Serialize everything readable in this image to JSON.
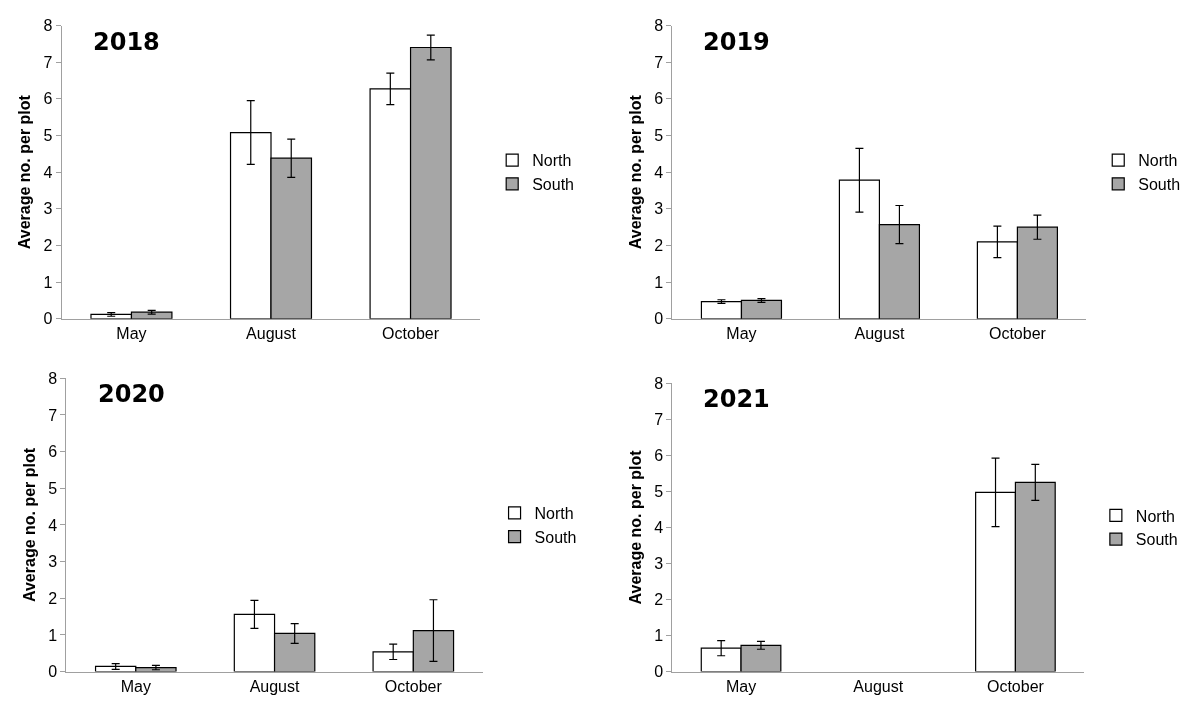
{
  "chart_data": [
    {
      "type": "bar",
      "title": "2018",
      "ylabel": "Average no. per plot",
      "categories": [
        "May",
        "August",
        "October"
      ],
      "ylim": [
        0,
        8
      ],
      "yticks": [
        0,
        1,
        2,
        3,
        4,
        5,
        6,
        7,
        8
      ],
      "legend": "right",
      "series": [
        {
          "name": "North",
          "color": "#ffffff",
          "values": [
            0.12,
            5.08,
            6.27
          ],
          "errors": [
            0.05,
            0.87,
            0.43
          ]
        },
        {
          "name": "South",
          "color": "#a6a6a6",
          "values": [
            0.18,
            4.38,
            7.4
          ],
          "errors": [
            0.05,
            0.52,
            0.34
          ]
        }
      ]
    },
    {
      "type": "bar",
      "title": "2019",
      "ylabel": "Average no. per plot",
      "categories": [
        "May",
        "August",
        "October"
      ],
      "ylim": [
        0,
        8
      ],
      "yticks": [
        0,
        1,
        2,
        3,
        4,
        5,
        6,
        7,
        8
      ],
      "legend": "right",
      "series": [
        {
          "name": "North",
          "color": "#ffffff",
          "values": [
            0.47,
            3.78,
            2.1
          ],
          "errors": [
            0.05,
            0.87,
            0.43
          ]
        },
        {
          "name": "South",
          "color": "#a6a6a6",
          "values": [
            0.5,
            2.57,
            2.5
          ],
          "errors": [
            0.05,
            0.52,
            0.33
          ]
        }
      ]
    },
    {
      "type": "bar",
      "title": "2020",
      "ylabel": "Average no. per plot",
      "categories": [
        "May",
        "August",
        "October"
      ],
      "ylim": [
        0,
        8
      ],
      "yticks": [
        0,
        1,
        2,
        3,
        4,
        5,
        6,
        7,
        8
      ],
      "legend": "right",
      "series": [
        {
          "name": "North",
          "color": "#ffffff",
          "values": [
            0.14,
            1.56,
            0.54
          ],
          "errors": [
            0.08,
            0.38,
            0.21
          ]
        },
        {
          "name": "South",
          "color": "#a6a6a6",
          "values": [
            0.11,
            1.04,
            1.12
          ],
          "errors": [
            0.06,
            0.27,
            0.84
          ]
        }
      ]
    },
    {
      "type": "bar",
      "title": "2021",
      "ylabel": "Average no. per plot",
      "categories": [
        "May",
        "August",
        "October"
      ],
      "ylim": [
        0,
        8
      ],
      "yticks": [
        0,
        1,
        2,
        3,
        4,
        5,
        6,
        7,
        8
      ],
      "legend": "right",
      "series": [
        {
          "name": "North",
          "color": "#ffffff",
          "values": [
            0.65,
            null,
            4.97
          ],
          "errors": [
            0.21,
            null,
            0.95
          ]
        },
        {
          "name": "South",
          "color": "#a6a6a6",
          "values": [
            0.73,
            null,
            5.25
          ],
          "errors": [
            0.11,
            null,
            0.5
          ]
        }
      ]
    }
  ]
}
